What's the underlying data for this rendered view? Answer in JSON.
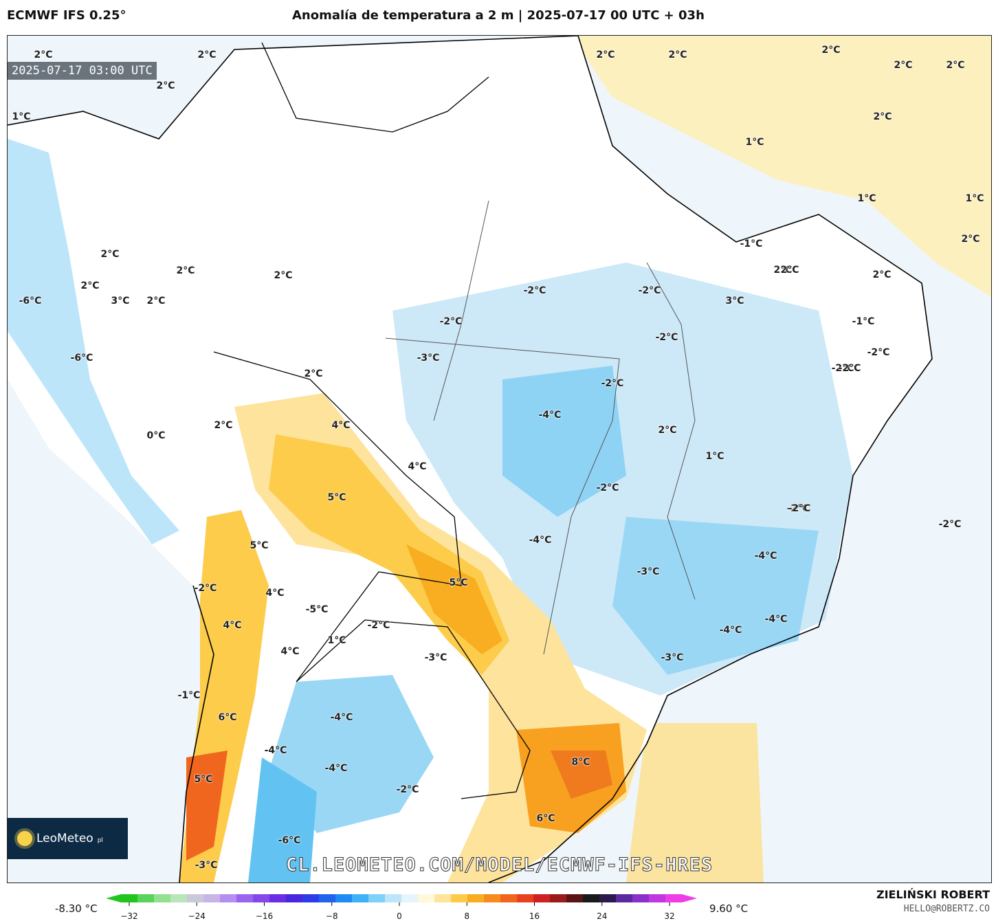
{
  "header": {
    "model": "ECMWF IFS 0.25°",
    "title": "Anomalía de temperatura a 2 m | 2025-07-17 00 UTC + 03h"
  },
  "map": {
    "timestamp": "2025-07-17 03:00 UTC",
    "watermark": "CL.LEOMETEO.COM/MODEL/ECMWF-IFS-HRES",
    "logo_text": "LeoMeteo",
    "logo_suffix": "pl",
    "labels": [
      "2°C",
      "2°C",
      "2°C",
      "2°C",
      "2°C",
      "2°C",
      "2°C",
      "2°C",
      "2°C",
      "2°C",
      "1°C",
      "1°C",
      "1°C",
      "1°C",
      "2°C",
      "2°C",
      "2°C",
      "2°C",
      "2°C",
      "2°C",
      "-6°C",
      "3°C",
      "2°C",
      "-6°C",
      "2°C",
      "2°C",
      "0°C",
      "4°C",
      "4°C",
      "5°C",
      "5°C",
      "4°C",
      "5°C",
      "-2°C",
      "4°C",
      "-5°C",
      "1°C",
      "-2°C",
      "4°C",
      "-1°C",
      "6°C",
      "-4°C",
      "-4°C",
      "5°C",
      "-4°C",
      "-6°C",
      "-3°C",
      "-2°C",
      "6°C",
      "8°C",
      "-3°C",
      "-4°C",
      "-2°C",
      "-2°C",
      "-4°C",
      "-2°C",
      "-2°C",
      "-2°C",
      "-2°C",
      "-1°C",
      "2°C",
      "3°C",
      "2°C",
      "-1°C",
      "-2°C",
      "-2°C",
      "2°C",
      "1°C",
      "-2°C",
      "-4°C",
      "-3°C",
      "-4°C",
      "-4°C",
      "-3°C",
      "-2°C",
      "-2°C",
      "-2°C",
      "-3°C"
    ]
  },
  "colorbar": {
    "min_label": "-8.30 °C",
    "max_label": "9.60 °C",
    "ticks": [
      "−32",
      "−24",
      "−16",
      "−8",
      "0",
      "8",
      "16",
      "24",
      "32"
    ],
    "colors": [
      "#22c51f",
      "#5ad35a",
      "#93e08f",
      "#b8e6b8",
      "#c9c9d9",
      "#c7b5e6",
      "#b38ff0",
      "#9a65ee",
      "#8547ea",
      "#6c2ce4",
      "#4b26e0",
      "#2e3bea",
      "#1f63ee",
      "#1d8bf3",
      "#3fb2f7",
      "#7fd1f8",
      "#bde5fa",
      "#e6f4fb",
      "#fff8d9",
      "#fde59b",
      "#fccb4a",
      "#f9ae22",
      "#f78b1e",
      "#f1661e",
      "#e8411e",
      "#cf2121",
      "#9c1a1a",
      "#5a1414",
      "#1a1a1a",
      "#2b1a4d",
      "#5a2aa0",
      "#8b30c8",
      "#c238e0",
      "#ee3de8"
    ]
  },
  "credit": {
    "author": "ZIELIŃSKI ROBERT",
    "email": "HELLO@ROBERTZ.CO"
  }
}
